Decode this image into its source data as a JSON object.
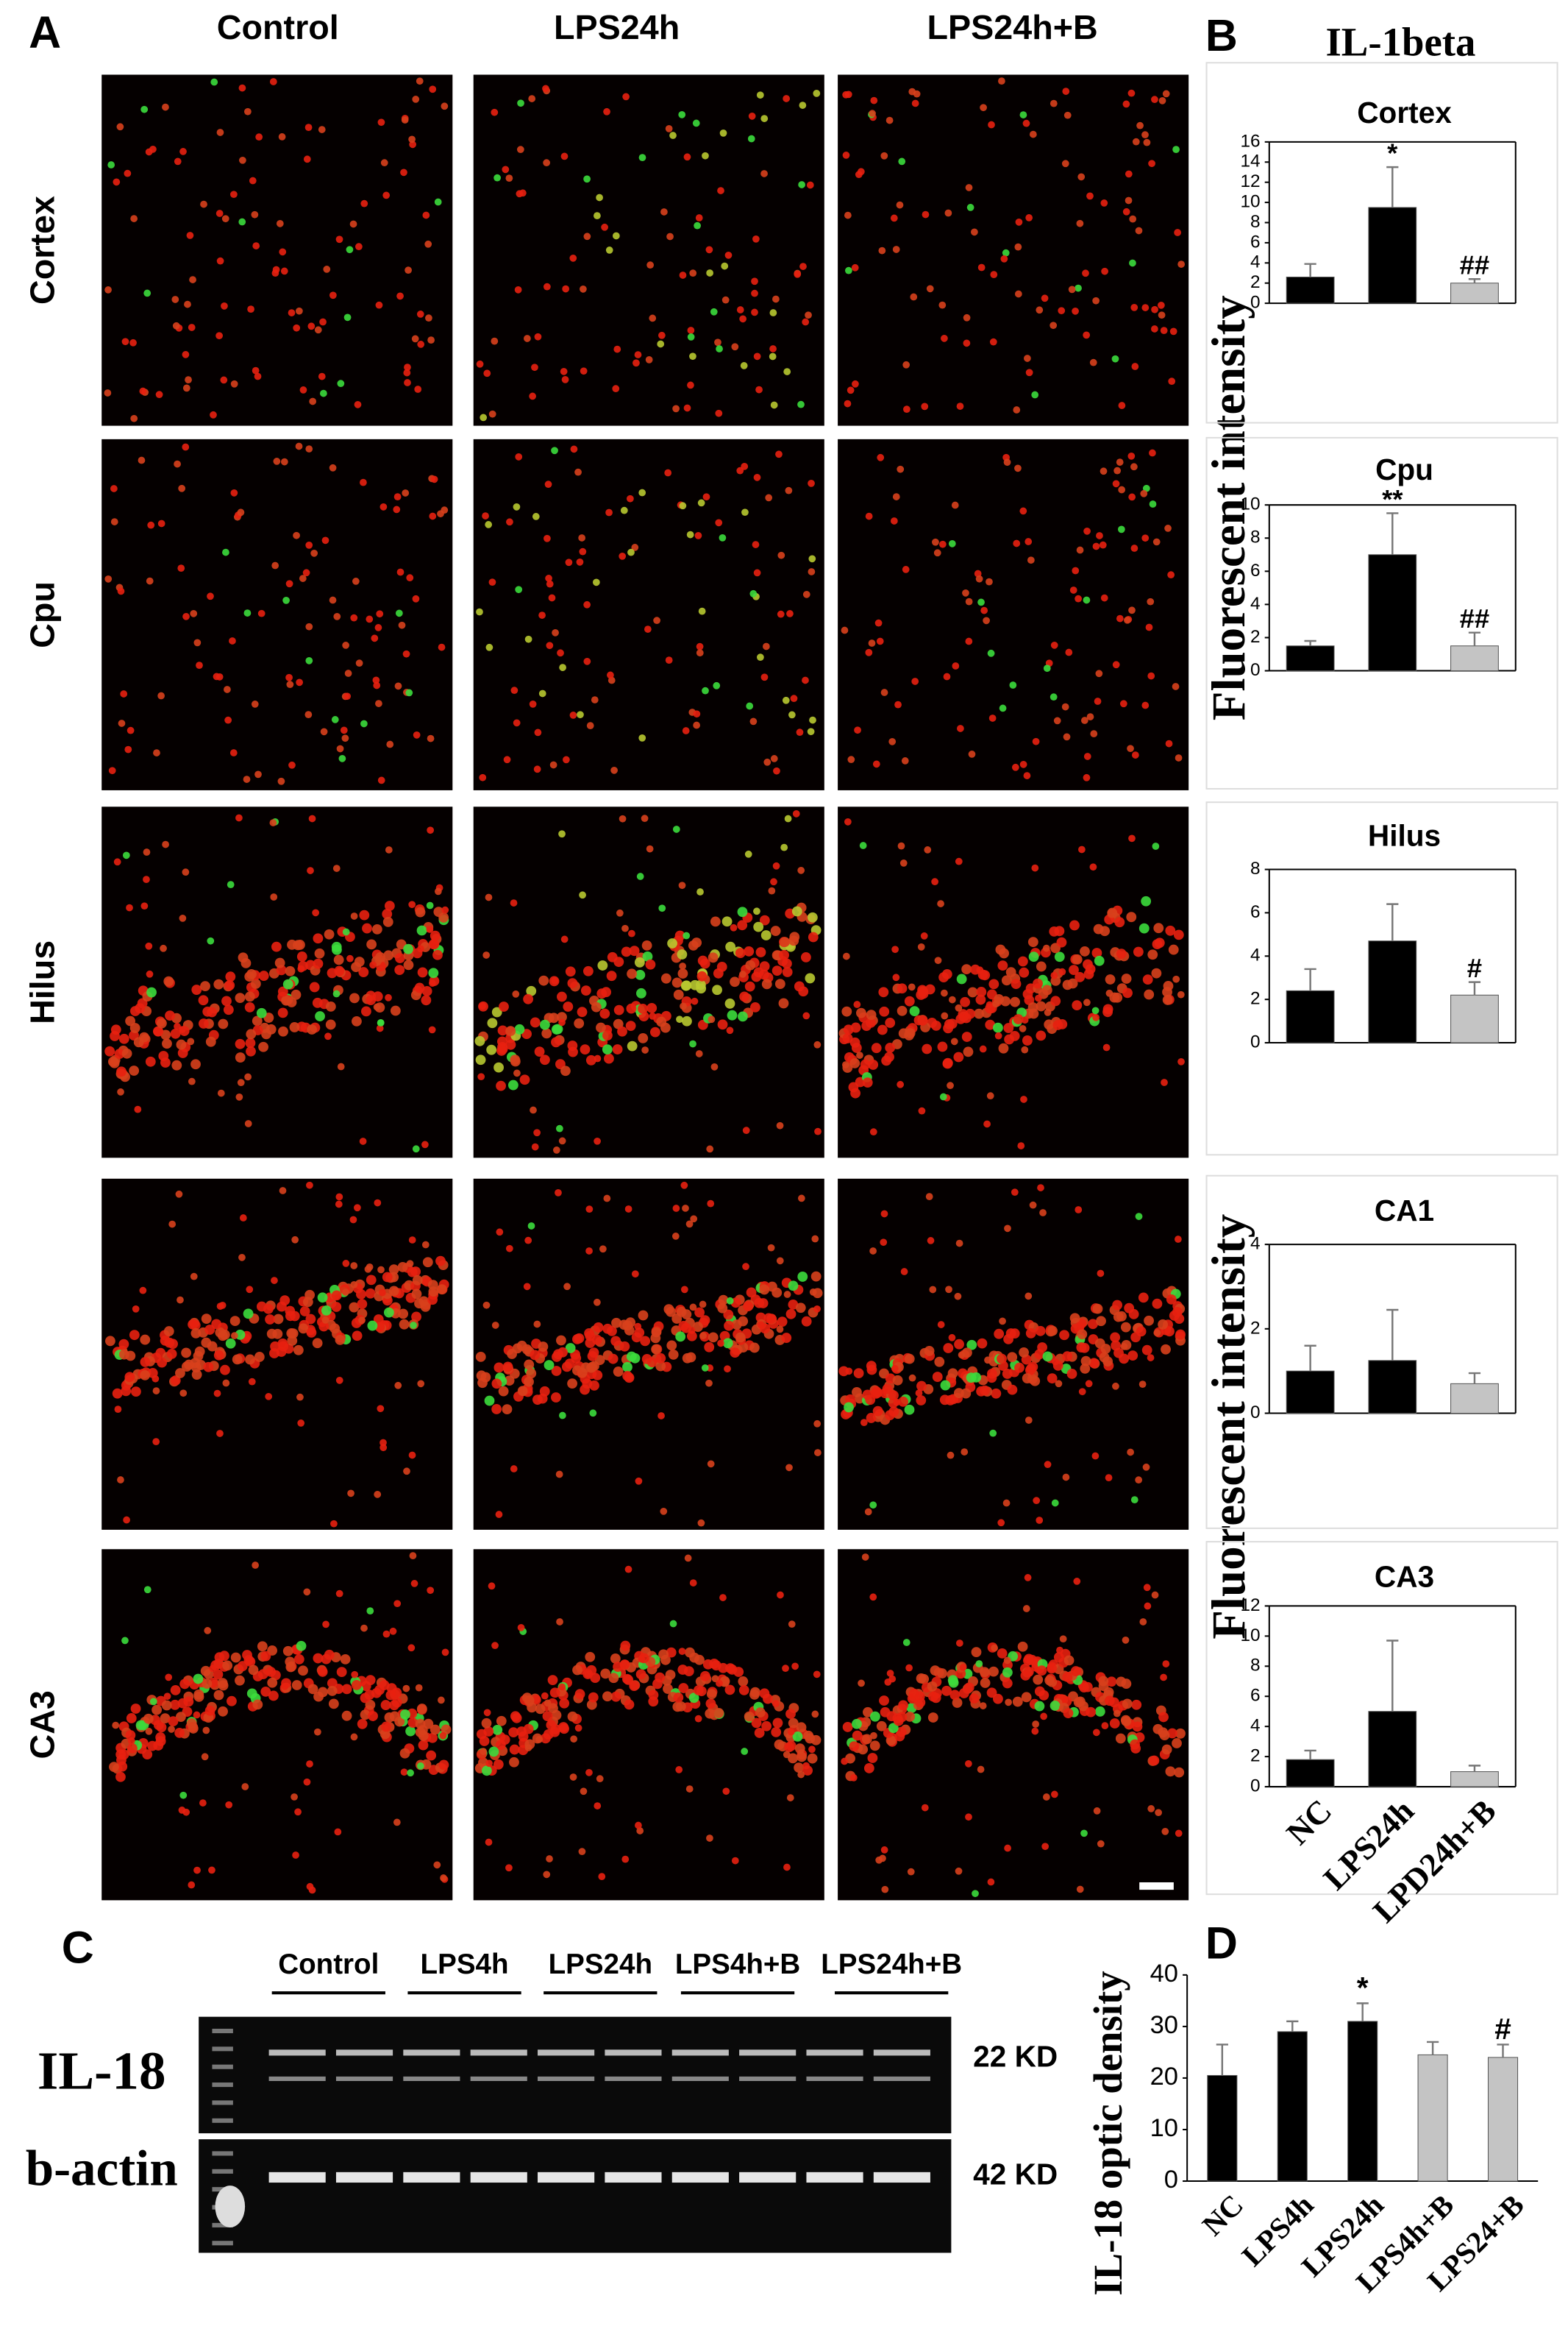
{
  "panel_labels": [
    "A",
    "B",
    "C",
    "D"
  ],
  "columns": [
    "Control",
    "LPS24h",
    "LPS24h+B"
  ],
  "rows": [
    "Cortex",
    "Cpu",
    "Hilus",
    null,
    "CA3"
  ],
  "panel_b_title": "IL-1beta",
  "panel_b_ylabel": "Fluorescent intensity",
  "blot": {
    "lanes": [
      "Control",
      "LPS4h",
      "LPS24h",
      "LPS4h+B",
      "LPS24h+B"
    ],
    "proteins": [
      "IL-18",
      "b-actin"
    ],
    "sizes": [
      "22 KD",
      "42 KD"
    ]
  },
  "chart_data": [
    {
      "type": "bar",
      "title": "Cortex",
      "categories": [
        null,
        null,
        null
      ],
      "values": [
        2.6,
        9.5,
        2.0
      ],
      "errors": [
        1.3,
        4.0,
        0.4
      ],
      "annotations": [
        null,
        "*",
        "##"
      ],
      "colors": [
        "#000000",
        "#000000",
        "#c4c4c4"
      ],
      "ylim": [
        0,
        16
      ],
      "yticks": [
        0,
        2,
        4,
        6,
        8,
        10,
        12,
        14,
        16
      ]
    },
    {
      "type": "bar",
      "title": "Cpu",
      "categories": [
        null,
        null,
        null
      ],
      "values": [
        1.5,
        7.0,
        1.5
      ],
      "errors": [
        0.3,
        2.5,
        0.8
      ],
      "annotations": [
        null,
        "**",
        "##"
      ],
      "colors": [
        "#000000",
        "#000000",
        "#c4c4c4"
      ],
      "ylim": [
        0,
        10
      ],
      "yticks": [
        0,
        2,
        4,
        6,
        8,
        10
      ]
    },
    {
      "type": "bar",
      "title": "Hilus",
      "categories": [
        null,
        null,
        null
      ],
      "values": [
        2.4,
        4.7,
        2.2
      ],
      "errors": [
        1.0,
        1.7,
        0.6
      ],
      "annotations": [
        null,
        null,
        "#"
      ],
      "colors": [
        "#000000",
        "#000000",
        "#c4c4c4"
      ],
      "ylim": [
        0,
        8
      ],
      "yticks": [
        0,
        2,
        4,
        6,
        8
      ]
    },
    {
      "type": "bar",
      "title": "CA1",
      "categories": [
        null,
        null,
        null
      ],
      "values": [
        1.0,
        1.25,
        0.7
      ],
      "errors": [
        0.6,
        1.2,
        0.25
      ],
      "annotations": [
        null,
        null,
        null
      ],
      "colors": [
        "#000000",
        "#000000",
        "#c4c4c4"
      ],
      "ylim": [
        0,
        4
      ],
      "yticks": [
        0,
        2,
        4
      ]
    },
    {
      "type": "bar",
      "title": "CA3",
      "categories": [
        "NC",
        "LPS24h",
        "LPD24h+B"
      ],
      "values": [
        1.8,
        5.0,
        1.0
      ],
      "errors": [
        0.6,
        4.7,
        0.4
      ],
      "annotations": [
        null,
        null,
        null
      ],
      "colors": [
        "#000000",
        "#000000",
        "#c4c4c4"
      ],
      "ylim": [
        0,
        12
      ],
      "yticks": [
        0,
        2,
        4,
        6,
        8,
        10,
        12
      ]
    },
    {
      "type": "bar",
      "y_label": "IL-18 optic density",
      "categories": [
        "NC",
        "LPS4h",
        "LPS24h",
        "LPS4h+B",
        "LPS24+B"
      ],
      "values": [
        20.5,
        29,
        31,
        24.5,
        24
      ],
      "errors": [
        6,
        2,
        3.5,
        2.5,
        2.5
      ],
      "annotations": [
        null,
        null,
        "*",
        null,
        "#"
      ],
      "colors": [
        "#000000",
        "#000000",
        "#000000",
        "#c4c4c4",
        "#c4c4c4"
      ],
      "ylim": [
        0,
        40
      ],
      "yticks": [
        0,
        10,
        20,
        30,
        40
      ]
    }
  ]
}
